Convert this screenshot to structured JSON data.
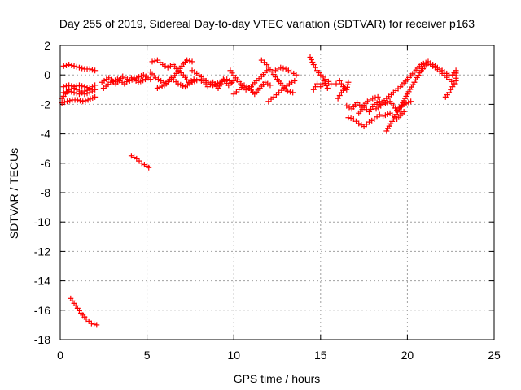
{
  "chart_data": {
    "type": "scatter",
    "title": "Day 255 of 2019, Sidereal Day-to-day VTEC variation (SDTVAR) for receiver p163",
    "xlabel": "GPS time / hours",
    "ylabel": "SDTVAR / TECUs",
    "xlim": [
      0,
      25
    ],
    "ylim": [
      -18,
      2
    ],
    "xticks": [
      0,
      5,
      10,
      15,
      20,
      25
    ],
    "yticks": [
      -18,
      -16,
      -14,
      -12,
      -10,
      -8,
      -6,
      -4,
      -2,
      0,
      2
    ],
    "grid": true,
    "marker": "+",
    "color": "#ff0000",
    "series": [
      {
        "name": "SDTVAR",
        "segments": [
          {
            "points": [
              [
                0.1,
                -1.6
              ],
              [
                0.3,
                -1.3
              ],
              [
                0.5,
                -1.0
              ],
              [
                0.8,
                -0.9
              ],
              [
                1.1,
                -1.1
              ],
              [
                1.4,
                -1.3
              ],
              [
                1.7,
                -1.2
              ],
              [
                2.0,
                -1.0
              ]
            ]
          },
          {
            "points": [
              [
                0.1,
                -1.9
              ],
              [
                0.4,
                -1.8
              ],
              [
                0.7,
                -1.7
              ],
              [
                1.0,
                -1.7
              ],
              [
                1.3,
                -1.8
              ],
              [
                1.6,
                -1.7
              ],
              [
                2.0,
                -1.5
              ]
            ]
          },
          {
            "points": [
              [
                0.2,
                -0.8
              ],
              [
                0.5,
                -0.7
              ],
              [
                0.8,
                -0.8
              ],
              [
                1.1,
                -0.7
              ],
              [
                1.4,
                -0.8
              ],
              [
                1.7,
                -0.9
              ],
              [
                2.0,
                -0.7
              ]
            ]
          },
          {
            "points": [
              [
                0.2,
                -1.2
              ],
              [
                0.5,
                -1.1
              ],
              [
                0.8,
                -1.2
              ],
              [
                1.1,
                -1.3
              ],
              [
                1.4,
                -1.1
              ],
              [
                1.7,
                -1.0
              ]
            ]
          },
          {
            "points": [
              [
                0.2,
                0.6
              ],
              [
                0.5,
                0.7
              ],
              [
                0.8,
                0.6
              ],
              [
                1.1,
                0.5
              ],
              [
                1.4,
                0.4
              ],
              [
                1.7,
                0.4
              ],
              [
                2.0,
                0.3
              ]
            ]
          },
          {
            "points": [
              [
                0.6,
                -15.2
              ],
              [
                0.9,
                -15.7
              ],
              [
                1.2,
                -16.2
              ],
              [
                1.5,
                -16.6
              ],
              [
                1.8,
                -16.9
              ],
              [
                2.1,
                -17.0
              ]
            ]
          },
          {
            "points": [
              [
                4.1,
                -5.5
              ],
              [
                4.4,
                -5.7
              ],
              [
                4.7,
                -6.0
              ],
              [
                5.0,
                -6.2
              ],
              [
                5.1,
                -6.3
              ]
            ]
          },
          {
            "points": [
              [
                2.4,
                -0.5
              ],
              [
                2.8,
                -0.2
              ],
              [
                3.2,
                -0.6
              ],
              [
                3.6,
                -0.1
              ],
              [
                4.0,
                -0.4
              ],
              [
                4.4,
                -0.2
              ],
              [
                4.8,
                0.0
              ],
              [
                5.2,
                -0.3
              ]
            ]
          },
          {
            "points": [
              [
                2.5,
                -0.9
              ],
              [
                2.9,
                -0.5
              ],
              [
                3.3,
                -0.3
              ],
              [
                3.7,
                -0.6
              ],
              [
                4.1,
                -0.2
              ],
              [
                4.5,
                -0.5
              ],
              [
                4.9,
                -0.3
              ]
            ]
          },
          {
            "points": [
              [
                5.2,
                0.2
              ],
              [
                5.5,
                -0.2
              ],
              [
                5.8,
                -0.4
              ],
              [
                6.1,
                -0.6
              ],
              [
                6.4,
                -0.3
              ],
              [
                6.7,
                0.1
              ],
              [
                7.0,
                0.6
              ],
              [
                7.3,
                1.0
              ],
              [
                7.6,
                0.9
              ]
            ]
          },
          {
            "points": [
              [
                5.3,
                0.9
              ],
              [
                5.6,
                1.0
              ],
              [
                5.9,
                0.7
              ],
              [
                6.2,
                0.5
              ],
              [
                6.5,
                0.7
              ],
              [
                6.8,
                0.3
              ],
              [
                7.1,
                0.0
              ],
              [
                7.4,
                -0.5
              ],
              [
                7.7,
                -0.3
              ]
            ]
          },
          {
            "points": [
              [
                5.6,
                -0.9
              ],
              [
                6.0,
                -0.7
              ],
              [
                6.4,
                -0.2
              ],
              [
                6.8,
                -0.6
              ],
              [
                7.2,
                -0.8
              ],
              [
                7.6,
                -0.5
              ],
              [
                8.0,
                -0.3
              ],
              [
                8.4,
                -0.6
              ]
            ]
          },
          {
            "points": [
              [
                7.6,
                0.3
              ],
              [
                8.0,
                0.0
              ],
              [
                8.4,
                -0.4
              ],
              [
                8.8,
                -0.7
              ],
              [
                9.2,
                -0.5
              ],
              [
                9.6,
                -0.3
              ],
              [
                9.9,
                -0.5
              ]
            ]
          },
          {
            "points": [
              [
                8.5,
                -0.8
              ],
              [
                8.8,
                -0.5
              ],
              [
                9.1,
                -0.9
              ],
              [
                9.4,
                -0.3
              ],
              [
                9.7,
                -0.7
              ],
              [
                10.0,
                -0.4
              ]
            ]
          },
          {
            "points": [
              [
                9.8,
                0.3
              ],
              [
                10.1,
                -0.2
              ],
              [
                10.4,
                -0.6
              ],
              [
                10.7,
                -1.0
              ],
              [
                11.0,
                -0.8
              ],
              [
                11.3,
                -0.4
              ],
              [
                11.6,
                -0.1
              ],
              [
                11.9,
                0.3
              ]
            ]
          },
          {
            "points": [
              [
                10.0,
                -1.3
              ],
              [
                10.3,
                -1.0
              ],
              [
                10.6,
                -0.7
              ],
              [
                10.9,
                -0.9
              ],
              [
                11.2,
                -1.3
              ],
              [
                11.5,
                -0.9
              ],
              [
                11.8,
                -0.5
              ],
              [
                12.1,
                -0.7
              ]
            ]
          },
          {
            "points": [
              [
                11.6,
                1.0
              ],
              [
                11.9,
                0.7
              ],
              [
                12.2,
                0.2
              ],
              [
                12.5,
                -0.3
              ],
              [
                12.8,
                -0.7
              ],
              [
                13.1,
                -1.1
              ],
              [
                13.4,
                -1.2
              ]
            ]
          },
          {
            "points": [
              [
                12.0,
                -1.8
              ],
              [
                12.3,
                -1.5
              ],
              [
                12.6,
                -1.2
              ],
              [
                12.9,
                -0.9
              ],
              [
                13.2,
                -0.6
              ],
              [
                13.5,
                -0.4
              ]
            ]
          },
          {
            "points": [
              [
                12.4,
                0.3
              ],
              [
                12.7,
                0.5
              ],
              [
                13.0,
                0.4
              ],
              [
                13.3,
                0.2
              ],
              [
                13.6,
                0.0
              ]
            ]
          },
          {
            "points": [
              [
                14.4,
                1.2
              ],
              [
                14.6,
                0.7
              ],
              [
                14.8,
                0.3
              ],
              [
                15.0,
                0.0
              ],
              [
                15.3,
                -0.3
              ],
              [
                15.6,
                -0.6
              ]
            ]
          },
          {
            "points": [
              [
                14.6,
                -1.0
              ],
              [
                14.8,
                -0.6
              ],
              [
                15.0,
                -0.8
              ],
              [
                15.2,
                -0.4
              ],
              [
                15.4,
                -0.9
              ]
            ]
          },
          {
            "points": [
              [
                15.9,
                -0.6
              ],
              [
                16.1,
                -0.4
              ],
              [
                16.3,
                -0.8
              ],
              [
                16.5,
                -1.0
              ],
              [
                16.6,
                -0.5
              ]
            ]
          },
          {
            "points": [
              [
                16.0,
                -1.6
              ],
              [
                16.2,
                -1.2
              ],
              [
                16.4,
                -0.9
              ]
            ]
          },
          {
            "points": [
              [
                16.5,
                -2.1
              ],
              [
                16.8,
                -2.3
              ],
              [
                17.1,
                -1.9
              ],
              [
                17.4,
                -2.2
              ],
              [
                17.7,
                -1.8
              ],
              [
                18.0,
                -1.6
              ],
              [
                18.3,
                -1.5
              ]
            ]
          },
          {
            "points": [
              [
                16.6,
                -2.9
              ],
              [
                16.9,
                -3.0
              ],
              [
                17.2,
                -3.3
              ],
              [
                17.5,
                -3.5
              ],
              [
                17.8,
                -3.2
              ],
              [
                18.1,
                -3.0
              ],
              [
                18.4,
                -2.7
              ]
            ]
          },
          {
            "points": [
              [
                17.2,
                -2.6
              ],
              [
                17.5,
                -2.2
              ],
              [
                17.8,
                -2.5
              ],
              [
                18.1,
                -2.0
              ],
              [
                18.4,
                -1.8
              ]
            ]
          },
          {
            "points": [
              [
                18.4,
                -2.0
              ],
              [
                18.8,
                -1.6
              ],
              [
                19.2,
                -1.2
              ],
              [
                19.6,
                -0.8
              ],
              [
                20.0,
                -0.3
              ],
              [
                20.4,
                0.2
              ],
              [
                20.8,
                0.7
              ],
              [
                21.2,
                0.9
              ],
              [
                21.6,
                0.6
              ],
              [
                22.0,
                0.3
              ],
              [
                22.4,
                0.0
              ]
            ]
          },
          {
            "points": [
              [
                18.8,
                -3.8
              ],
              [
                19.2,
                -3.0
              ],
              [
                19.6,
                -2.2
              ],
              [
                20.0,
                -1.3
              ],
              [
                20.4,
                -0.5
              ],
              [
                20.8,
                0.3
              ],
              [
                21.2,
                0.8
              ],
              [
                21.6,
                0.5
              ],
              [
                22.0,
                0.1
              ],
              [
                22.4,
                -0.3
              ],
              [
                22.7,
                -0.6
              ]
            ]
          },
          {
            "points": [
              [
                18.2,
                -2.3
              ],
              [
                18.6,
                -2.0
              ],
              [
                19.0,
                -1.8
              ],
              [
                19.4,
                -2.4
              ],
              [
                19.8,
                -2.0
              ],
              [
                20.2,
                -1.8
              ]
            ]
          },
          {
            "points": [
              [
                18.6,
                -2.8
              ],
              [
                19.0,
                -2.6
              ],
              [
                19.4,
                -3.0
              ],
              [
                19.8,
                -2.5
              ]
            ]
          },
          {
            "points": [
              [
                22.2,
                -1.5
              ],
              [
                22.4,
                -1.2
              ],
              [
                22.6,
                -0.8
              ],
              [
                22.8,
                -0.4
              ],
              [
                22.8,
                0.3
              ],
              [
                22.6,
                0.0
              ]
            ]
          }
        ]
      }
    ]
  }
}
